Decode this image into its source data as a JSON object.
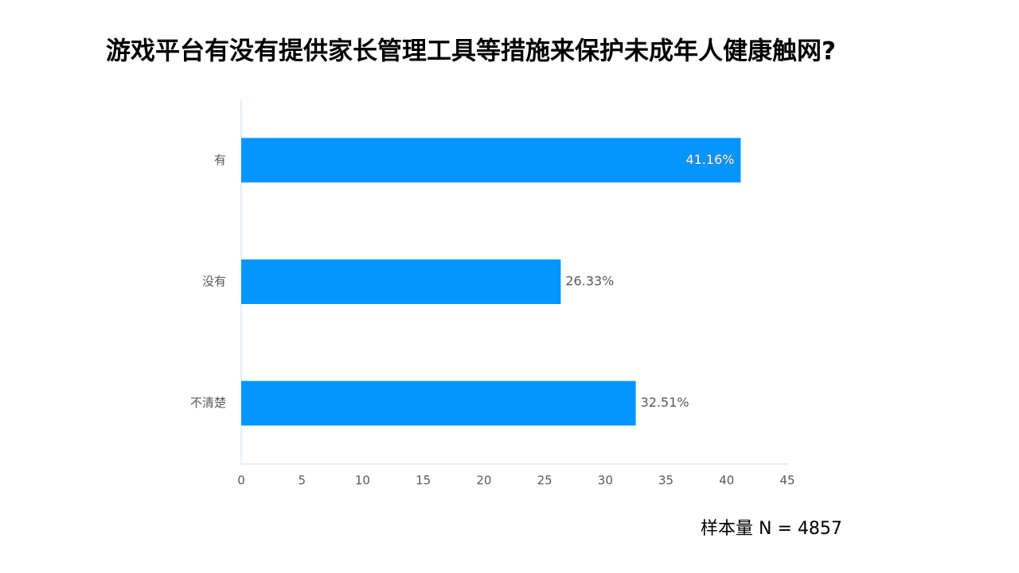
{
  "chart_data": {
    "type": "bar",
    "orientation": "horizontal",
    "title": "游戏平台有没有提供家长管理工具等措施来保护未成年人健康触网?",
    "categories": [
      "有",
      "没有",
      "不清楚"
    ],
    "values": [
      41.16,
      26.33,
      32.51
    ],
    "value_labels": [
      "41.16%",
      "26.33%",
      "32.51%"
    ],
    "color": "#0595ff",
    "xlim": [
      0,
      45
    ],
    "xticks": [
      0,
      5,
      10,
      15,
      20,
      25,
      30,
      35,
      40,
      45
    ],
    "grid": false,
    "annotation": "样本量 N = 4857"
  }
}
